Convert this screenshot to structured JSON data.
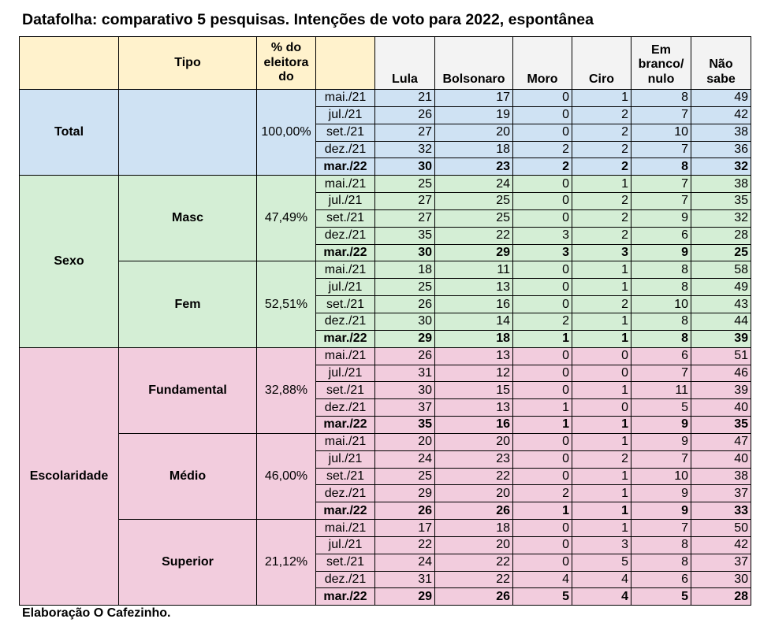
{
  "title": "Datafolha: comparativo 5 pesquisas. Intenções de voto para 2022, espontânea",
  "footer": "Elaboração O Cafezinho.",
  "headers": {
    "group": "",
    "tipo": "Tipo",
    "pct": "% do eleitora do",
    "date": "",
    "columns": [
      "Lula",
      "Bolsonaro",
      "Moro",
      "Ciro",
      "Em branco/ nulo",
      "Não sabe"
    ]
  },
  "colors": {
    "header_yellow": "#fff2cc",
    "header_gray": "#f3f3f3",
    "total": "#cfe2f3",
    "sexo": "#d4eed5",
    "escolaridade": "#f2ccdd"
  },
  "groups": [
    {
      "label": "Total",
      "color": "#cfe2f3",
      "subgroups": [
        {
          "label": "",
          "pct": "100,00%",
          "rows": [
            {
              "date": "mai./21",
              "values": [
                21,
                17,
                0,
                1,
                8,
                49
              ]
            },
            {
              "date": "jul./21",
              "values": [
                26,
                19,
                0,
                2,
                7,
                42
              ]
            },
            {
              "date": "set./21",
              "values": [
                27,
                20,
                0,
                2,
                10,
                38
              ]
            },
            {
              "date": "dez./21",
              "values": [
                32,
                18,
                2,
                2,
                7,
                36
              ]
            },
            {
              "date": "mar./22",
              "values": [
                30,
                23,
                2,
                2,
                8,
                32
              ]
            }
          ]
        }
      ]
    },
    {
      "label": "Sexo",
      "color": "#d4eed5",
      "subgroups": [
        {
          "label": "Masc",
          "pct": "47,49%",
          "rows": [
            {
              "date": "mai./21",
              "values": [
                25,
                24,
                0,
                1,
                7,
                38
              ]
            },
            {
              "date": "jul./21",
              "values": [
                27,
                25,
                0,
                2,
                7,
                35
              ]
            },
            {
              "date": "set./21",
              "values": [
                27,
                25,
                0,
                2,
                9,
                32
              ]
            },
            {
              "date": "dez./21",
              "values": [
                35,
                22,
                3,
                2,
                6,
                28
              ]
            },
            {
              "date": "mar./22",
              "values": [
                30,
                29,
                3,
                3,
                9,
                25
              ]
            }
          ]
        },
        {
          "label": "Fem",
          "pct": "52,51%",
          "rows": [
            {
              "date": "mai./21",
              "values": [
                18,
                11,
                0,
                1,
                8,
                58
              ]
            },
            {
              "date": "jul./21",
              "values": [
                25,
                13,
                0,
                1,
                8,
                49
              ]
            },
            {
              "date": "set./21",
              "values": [
                26,
                16,
                0,
                2,
                10,
                43
              ]
            },
            {
              "date": "dez./21",
              "values": [
                30,
                14,
                2,
                1,
                8,
                44
              ]
            },
            {
              "date": "mar./22",
              "values": [
                29,
                18,
                1,
                1,
                8,
                39
              ]
            }
          ]
        }
      ]
    },
    {
      "label": "Escolaridade",
      "color": "#f2ccdd",
      "subgroups": [
        {
          "label": "Fundamental",
          "pct": "32,88%",
          "rows": [
            {
              "date": "mai./21",
              "values": [
                26,
                13,
                0,
                0,
                6,
                51
              ]
            },
            {
              "date": "jul./21",
              "values": [
                31,
                12,
                0,
                0,
                7,
                46
              ]
            },
            {
              "date": "set./21",
              "values": [
                30,
                15,
                0,
                1,
                11,
                39
              ]
            },
            {
              "date": "dez./21",
              "values": [
                37,
                13,
                1,
                0,
                5,
                40
              ]
            },
            {
              "date": "mar./22",
              "values": [
                35,
                16,
                1,
                1,
                9,
                35
              ]
            }
          ]
        },
        {
          "label": "Médio",
          "pct": "46,00%",
          "rows": [
            {
              "date": "mai./21",
              "values": [
                20,
                20,
                0,
                1,
                9,
                47
              ]
            },
            {
              "date": "jul./21",
              "values": [
                24,
                23,
                0,
                2,
                7,
                40
              ]
            },
            {
              "date": "set./21",
              "values": [
                25,
                22,
                0,
                1,
                10,
                38
              ]
            },
            {
              "date": "dez./21",
              "values": [
                29,
                20,
                2,
                1,
                9,
                37
              ]
            },
            {
              "date": "mar./22",
              "values": [
                26,
                26,
                1,
                1,
                9,
                33
              ]
            }
          ]
        },
        {
          "label": "Superior",
          "pct": "21,12%",
          "rows": [
            {
              "date": "mai./21",
              "values": [
                17,
                18,
                0,
                1,
                7,
                50
              ]
            },
            {
              "date": "jul./21",
              "values": [
                22,
                20,
                0,
                3,
                8,
                42
              ]
            },
            {
              "date": "set./21",
              "values": [
                24,
                22,
                0,
                5,
                8,
                37
              ]
            },
            {
              "date": "dez./21",
              "values": [
                31,
                22,
                4,
                4,
                6,
                30
              ]
            },
            {
              "date": "mar./22",
              "values": [
                29,
                26,
                5,
                4,
                5,
                28
              ]
            }
          ]
        }
      ]
    }
  ]
}
